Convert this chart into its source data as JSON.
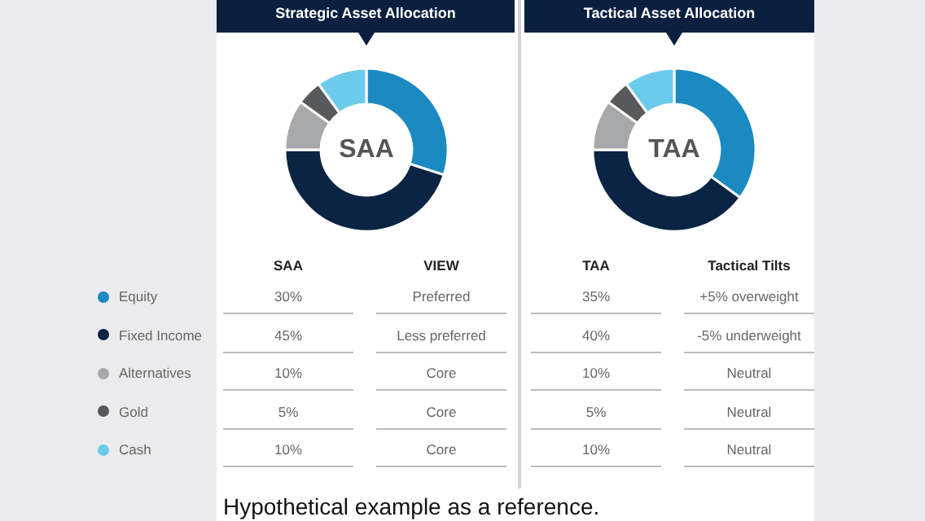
{
  "chart_data": {
    "type": "donut",
    "categories": [
      "Equity",
      "Fixed Income",
      "Alternatives",
      "Gold",
      "Cash"
    ],
    "colors": [
      "#1a8ac0",
      "#0b2444",
      "#a7a8aa",
      "#58595b",
      "#6ccbeb"
    ],
    "legend": "left",
    "series": [
      {
        "name": "SAA",
        "values": [
          30,
          45,
          10,
          5,
          10
        ],
        "value_labels": [
          "30%",
          "45%",
          "10%",
          "5%",
          "10%"
        ]
      },
      {
        "name": "TAA",
        "values": [
          35,
          40,
          10,
          5,
          10
        ],
        "value_labels": [
          "35%",
          "40%",
          "10%",
          "5%",
          "10%"
        ]
      }
    ],
    "annotations": [
      "Strategic Asset Allocation",
      "VIEW",
      "Preferred",
      "Less preferred",
      "Core",
      "Core",
      "Core",
      "Tactical Asset Allocation",
      "Tactical Tilts",
      "+5% overweight",
      "-5% underweight",
      "Neutral",
      "Neutral",
      "Neutral",
      "Hypothetical example as a reference."
    ]
  }
}
